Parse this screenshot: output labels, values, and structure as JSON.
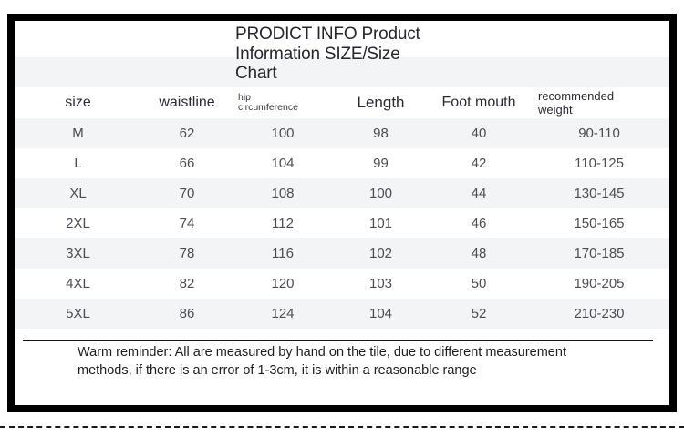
{
  "title": {
    "lines": [
      "PRODICT INFO Product",
      "Information SIZE/Size",
      "Chart"
    ]
  },
  "table": {
    "headers": {
      "size": "size",
      "waistline": "waistline",
      "hip": {
        "lines": [
          "hip",
          "circumference"
        ]
      },
      "length": "Length",
      "foot_mouth": "Foot mouth",
      "weight": {
        "lines": [
          "recommended",
          "weight"
        ]
      }
    },
    "rows": [
      {
        "size": "M",
        "waistline": "62",
        "hip": "100",
        "length": "98",
        "foot_mouth": "40",
        "weight": "90-110"
      },
      {
        "size": "L",
        "waistline": "66",
        "hip": "104",
        "length": "99",
        "foot_mouth": "42",
        "weight": "110-125"
      },
      {
        "size": "XL",
        "waistline": "70",
        "hip": "108",
        "length": "100",
        "foot_mouth": "44",
        "weight": "130-145"
      },
      {
        "size": "2XL",
        "waistline": "74",
        "hip": "112",
        "length": "101",
        "foot_mouth": "46",
        "weight": "150-165"
      },
      {
        "size": "3XL",
        "waistline": "78",
        "hip": "116",
        "length": "102",
        "foot_mouth": "48",
        "weight": "170-185"
      },
      {
        "size": "4XL",
        "waistline": "82",
        "hip": "120",
        "length": "103",
        "foot_mouth": "50",
        "weight": "190-205"
      },
      {
        "size": "5XL",
        "waistline": "86",
        "hip": "124",
        "length": "104",
        "foot_mouth": "52",
        "weight": "210-230"
      }
    ]
  },
  "reminder": {
    "lines": [
      "Warm reminder: All are measured by hand on the tile, due to different measurement",
      "methods, if there is an error of 1-3cm, it is within a reasonable range"
    ]
  },
  "colors": {
    "frame": "#000000",
    "stripe": "#f3f4f6",
    "heading_text": "#29242e",
    "value_text": "#4c4c54"
  }
}
